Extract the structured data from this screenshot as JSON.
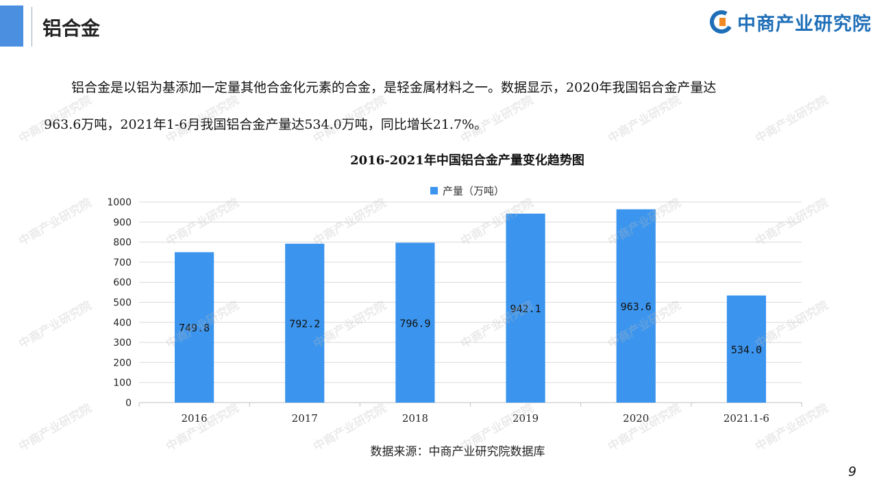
{
  "slide": {
    "title": "铝合金",
    "page_number": "9"
  },
  "brand": {
    "logo_text": "中商产业研究院",
    "logo_color": "#1f6fb8",
    "accent_color": "#4a8fe0"
  },
  "paragraph": {
    "line1": "铝合金是以铝为基添加一定量其他合金化元素的合金，是轻金属材料之一。数据显示，2020年我国铝合金产量达",
    "line2": "963.6万吨，2021年1-6月我国铝合金产量达534.0万吨，同比增长21.7%。"
  },
  "chart_data": {
    "type": "bar",
    "title": "2016-2021年中国铝合金产量变化趋势图",
    "categories": [
      "2016",
      "2017",
      "2018",
      "2019",
      "2020",
      "2021.1-6"
    ],
    "series": [
      {
        "name": "产量（万吨）",
        "values": [
          749.8,
          792.2,
          796.9,
          942.1,
          963.6,
          534.0
        ],
        "color": "#3b95ee"
      }
    ],
    "data_labels": [
      "749.8",
      "792.2",
      "796.9",
      "942.1",
      "963.6",
      "534.0"
    ],
    "y_ticks": [
      "0",
      "100",
      "200",
      "300",
      "400",
      "500",
      "600",
      "700",
      "800",
      "900",
      "1000"
    ],
    "ylim": [
      0,
      1000
    ],
    "grid": true,
    "legend_position": "top-center"
  },
  "source": "数据来源：中商产业研究院数据库",
  "watermark": "中商产业研究院"
}
